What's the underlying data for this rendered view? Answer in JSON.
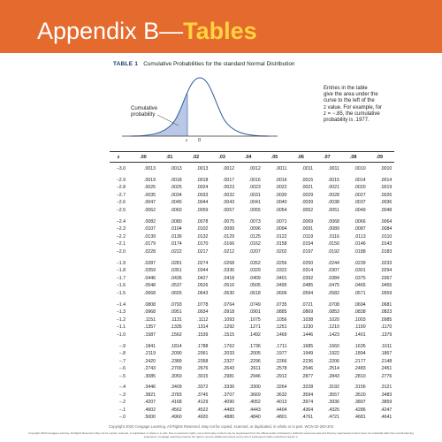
{
  "header": {
    "title_part1": "Appendix B—",
    "title_part2": "Tables",
    "accent_color": "#e46a2e",
    "highlight_color": "#ffd23f"
  },
  "table": {
    "caption_label": "TABLE 1",
    "caption_text": "Cumulative Probabilities for the standard Normal Distribution",
    "figure": {
      "cumulative_label_line1": "Cumulative",
      "cumulative_label_line2": "probability",
      "z_label": "z",
      "zero_label": "0"
    },
    "note_lines": [
      "Entries in the table",
      "give the area under the",
      "curve to the left of the",
      "z value. For example, for",
      "z = −.85, the cumulative",
      "probability is .1977."
    ],
    "columns": [
      "z",
      ".00",
      ".01",
      ".02",
      ".03",
      ".04",
      ".05",
      ".06",
      ".07",
      ".08",
      ".09"
    ],
    "rows": [
      {
        "z": "−3.0",
        "v": [
          ".0013",
          ".0013",
          ".0013",
          ".0012",
          ".0012",
          ".0011",
          ".0011",
          ".0011",
          ".0010",
          ".0010"
        ]
      },
      {
        "z": "−2.9",
        "v": [
          ".0019",
          ".0018",
          ".0018",
          ".0017",
          ".0016",
          ".0016",
          ".0015",
          ".0015",
          ".0014",
          ".0014"
        ]
      },
      {
        "z": "−2.8",
        "v": [
          ".0026",
          ".0025",
          ".0024",
          ".0023",
          ".0023",
          ".0022",
          ".0021",
          ".0021",
          ".0020",
          ".0019"
        ]
      },
      {
        "z": "−2.7",
        "v": [
          ".0035",
          ".0034",
          ".0033",
          ".0032",
          ".0031",
          ".0030",
          ".0029",
          ".0028",
          ".0027",
          ".0026"
        ]
      },
      {
        "z": "−2.6",
        "v": [
          ".0047",
          ".0045",
          ".0044",
          ".0043",
          ".0041",
          ".0040",
          ".0039",
          ".0038",
          ".0037",
          ".0036"
        ]
      },
      {
        "z": "−2.5",
        "v": [
          ".0062",
          ".0060",
          ".0059",
          ".0057",
          ".0055",
          ".0054",
          ".0052",
          ".0051",
          ".0049",
          ".0048"
        ]
      },
      {
        "z": "−2.4",
        "v": [
          ".0082",
          ".0080",
          ".0078",
          ".0075",
          ".0073",
          ".0071",
          ".0069",
          ".0068",
          ".0066",
          ".0064"
        ]
      },
      {
        "z": "−2.3",
        "v": [
          ".0107",
          ".0104",
          ".0102",
          ".0099",
          ".0096",
          ".0094",
          ".0091",
          ".0089",
          ".0087",
          ".0084"
        ]
      },
      {
        "z": "−2.2",
        "v": [
          ".0139",
          ".0136",
          ".0132",
          ".0129",
          ".0125",
          ".0122",
          ".0119",
          ".0116",
          ".0113",
          ".0110"
        ]
      },
      {
        "z": "−2.1",
        "v": [
          ".0179",
          ".0174",
          ".0170",
          ".0166",
          ".0162",
          ".0158",
          ".0154",
          ".0150",
          ".0146",
          ".0143"
        ]
      },
      {
        "z": "−2.0",
        "v": [
          ".0228",
          ".0222",
          ".0217",
          ".0212",
          ".0207",
          ".0202",
          ".0197",
          ".0192",
          ".0188",
          ".0183"
        ]
      },
      {
        "z": "−1.9",
        "v": [
          ".0287",
          ".0281",
          ".0274",
          ".0268",
          ".0262",
          ".0256",
          ".0250",
          ".0244",
          ".0239",
          ".0233"
        ]
      },
      {
        "z": "−1.8",
        "v": [
          ".0359",
          ".0351",
          ".0344",
          ".0336",
          ".0329",
          ".0322",
          ".0314",
          ".0307",
          ".0301",
          ".0294"
        ]
      },
      {
        "z": "−1.7",
        "v": [
          ".0446",
          ".0436",
          ".0427",
          ".0418",
          ".0409",
          ".0401",
          ".0392",
          ".0384",
          ".0375",
          ".0367"
        ]
      },
      {
        "z": "−1.6",
        "v": [
          ".0548",
          ".0537",
          ".0526",
          ".0516",
          ".0505",
          ".0495",
          ".0485",
          ".0475",
          ".0465",
          ".0455"
        ]
      },
      {
        "z": "−1.5",
        "v": [
          ".0668",
          ".0655",
          ".0643",
          ".0630",
          ".0618",
          ".0606",
          ".0594",
          ".0582",
          ".0571",
          ".0559"
        ]
      },
      {
        "z": "−1.4",
        "v": [
          ".0808",
          ".0793",
          ".0778",
          ".0764",
          ".0749",
          ".0735",
          ".0721",
          ".0708",
          ".0694",
          ".0681"
        ]
      },
      {
        "z": "−1.3",
        "v": [
          ".0968",
          ".0951",
          ".0934",
          ".0918",
          ".0901",
          ".0885",
          ".0869",
          ".0853",
          ".0838",
          ".0823"
        ]
      },
      {
        "z": "−1.2",
        "v": [
          ".1151",
          ".1131",
          ".1112",
          ".1093",
          ".1075",
          ".1056",
          ".1038",
          ".1020",
          ".1003",
          ".0985"
        ]
      },
      {
        "z": "−1.1",
        "v": [
          ".1357",
          ".1335",
          ".1314",
          ".1292",
          ".1271",
          ".1251",
          ".1230",
          ".1210",
          ".1190",
          ".1170"
        ]
      },
      {
        "z": "−1.0",
        "v": [
          ".1587",
          ".1562",
          ".1539",
          ".1515",
          ".1492",
          ".1469",
          ".1446",
          ".1423",
          ".1401",
          ".1379"
        ]
      },
      {
        "z": "−.9",
        "v": [
          ".1841",
          ".1814",
          ".1788",
          ".1762",
          ".1736",
          ".1711",
          ".1685",
          ".1660",
          ".1635",
          ".1611"
        ]
      },
      {
        "z": "−.8",
        "v": [
          ".2119",
          ".2090",
          ".2061",
          ".2033",
          ".2005",
          ".1977",
          ".1949",
          ".1922",
          ".1894",
          ".1867"
        ]
      },
      {
        "z": "−.7",
        "v": [
          ".2420",
          ".2389",
          ".2358",
          ".2327",
          ".2296",
          ".2266",
          ".2236",
          ".2206",
          ".2177",
          ".2148"
        ]
      },
      {
        "z": "−.6",
        "v": [
          ".2743",
          ".2709",
          ".2676",
          ".2643",
          ".2611",
          ".2578",
          ".2546",
          ".2514",
          ".2483",
          ".2451"
        ]
      },
      {
        "z": "−.5",
        "v": [
          ".3085",
          ".3050",
          ".3015",
          ".2981",
          ".2946",
          ".2912",
          ".2877",
          ".2843",
          ".2810",
          ".2776"
        ]
      },
      {
        "z": "−.4",
        "v": [
          ".3446",
          ".3409",
          ".3372",
          ".3336",
          ".3300",
          ".3264",
          ".3228",
          ".3192",
          ".3156",
          ".3121"
        ]
      },
      {
        "z": "−.3",
        "v": [
          ".3821",
          ".3783",
          ".3745",
          ".3707",
          ".3669",
          ".3632",
          ".3594",
          ".3557",
          ".3520",
          ".3483"
        ]
      },
      {
        "z": "−.2",
        "v": [
          ".4207",
          ".4168",
          ".4129",
          ".4090",
          ".4052",
          ".4013",
          ".3974",
          ".3936",
          ".3897",
          ".3859"
        ]
      },
      {
        "z": "−.1",
        "v": [
          ".4602",
          ".4562",
          ".4522",
          ".4483",
          ".4443",
          ".4404",
          ".4364",
          ".4325",
          ".4286",
          ".4247"
        ]
      },
      {
        "z": "−.0",
        "v": [
          ".5000",
          ".4960",
          ".4920",
          ".4880",
          ".4840",
          ".4801",
          ".4761",
          ".4721",
          ".4681",
          ".4641"
        ]
      }
    ]
  },
  "footer": {
    "line1": "Copyright 2020 Cengage Learning. All Rights Reserved. May not be copied, scanned, or duplicated, in whole or in part.  WCN 02-200-203",
    "line2": "Copyright 2020 Cengage Learning. All Rights Reserved. May not be copied, scanned, or duplicated, in whole or in part. Due to electronic rights, some third party content may be suppressed from the eBook and/or eChapter(s). Editorial review has deemed that any suppressed content does not materially affect the overall learning experience. Cengage Learning reserves the right to remove additional content at any time if subsequent rights restrictions require it."
  }
}
